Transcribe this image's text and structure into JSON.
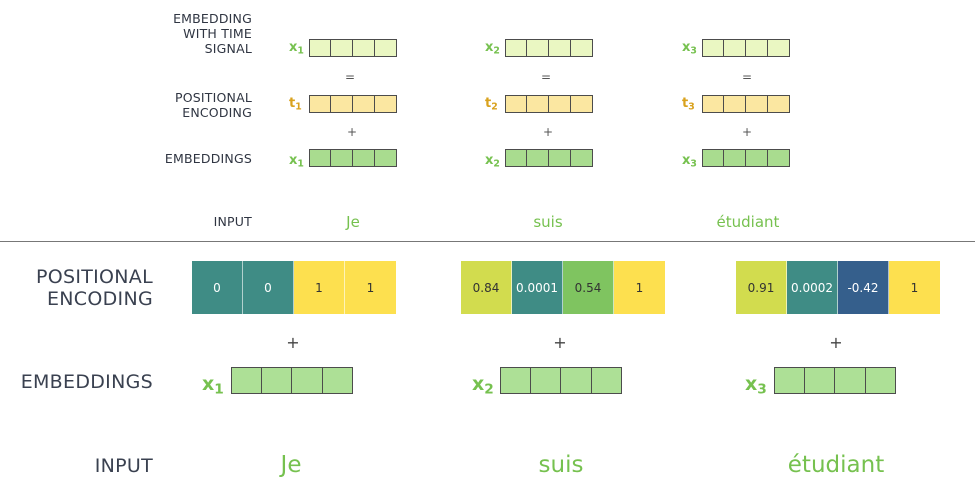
{
  "top": {
    "labels": {
      "embedding_with_time_signal": [
        "EMBEDDING",
        "WITH TIME",
        "SIGNAL"
      ],
      "positional_encoding": [
        "POSITIONAL",
        "ENCODING"
      ],
      "embeddings": "EMBEDDINGS",
      "input": "INPUT"
    },
    "equals": "=",
    "plus": "+",
    "tokens": [
      {
        "x": "x",
        "x_sub": "1",
        "t": "t",
        "t_sub": "1",
        "word": "Je"
      },
      {
        "x": "x",
        "x_sub": "2",
        "t": "t",
        "t_sub": "2",
        "word": "suis"
      },
      {
        "x": "x",
        "x_sub": "3",
        "t": "t",
        "t_sub": "3",
        "word": "étudiant"
      }
    ]
  },
  "bottom": {
    "labels": {
      "positional_encoding": [
        "POSITIONAL",
        "ENCODING"
      ],
      "embeddings": "EMBEDDINGS",
      "input": "INPUT"
    },
    "plus": "+",
    "tokens": [
      {
        "x": "x",
        "x_sub": "1",
        "word": "Je",
        "encoding": [
          {
            "value": "0",
            "color": "#3f8c85",
            "text_color": "#ffffff"
          },
          {
            "value": "0",
            "color": "#3f8c85",
            "text_color": "#ffffff"
          },
          {
            "value": "1",
            "color": "#fde04f",
            "text_color": "#333333"
          },
          {
            "value": "1",
            "color": "#fde04f",
            "text_color": "#333333"
          }
        ]
      },
      {
        "x": "x",
        "x_sub": "2",
        "word": "suis",
        "encoding": [
          {
            "value": "0.84",
            "color": "#d2dc4e",
            "text_color": "#333333"
          },
          {
            "value": "0.0001",
            "color": "#3f8c85",
            "text_color": "#ffffff"
          },
          {
            "value": "0.54",
            "color": "#7fc460",
            "text_color": "#333333"
          },
          {
            "value": "1",
            "color": "#fde04f",
            "text_color": "#333333"
          }
        ]
      },
      {
        "x": "x",
        "x_sub": "3",
        "word": "étudiant",
        "encoding": [
          {
            "value": "0.91",
            "color": "#d2dc4e",
            "text_color": "#333333"
          },
          {
            "value": "0.0002",
            "color": "#3f8c85",
            "text_color": "#ffffff"
          },
          {
            "value": "-0.42",
            "color": "#355f8c",
            "text_color": "#ffffff"
          },
          {
            "value": "1",
            "color": "#fde04f",
            "text_color": "#333333"
          }
        ]
      }
    ]
  }
}
